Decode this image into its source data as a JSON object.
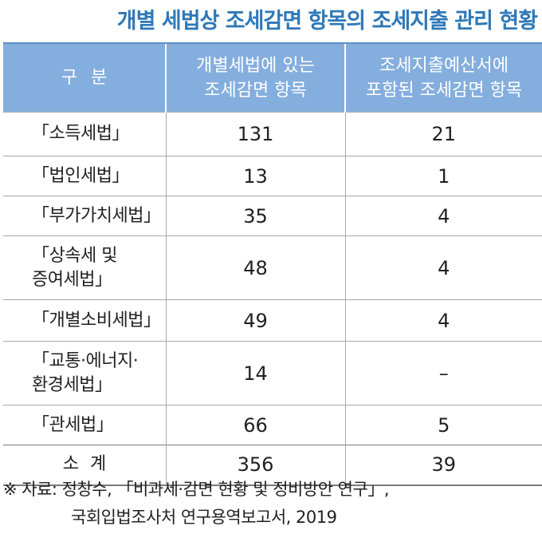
{
  "title": "개별 세법상 조세감면 항목의 조세지출 관리 현황",
  "table": {
    "headers": [
      "구  분",
      "개별세법에 있는\n조세감면 항목",
      "조세지출예산서에\n포함된 조세감면 항목"
    ],
    "rows": [
      {
        "name": "「소득세법」",
        "items": "131",
        "included": "21"
      },
      {
        "name": "「법인세법」",
        "items": "13",
        "included": "1"
      },
      {
        "name": "「부가가치세법」",
        "items": "35",
        "included": "4"
      },
      {
        "name": "「상속세 및\n증여세법」",
        "items": "48",
        "included": "4"
      },
      {
        "name": "「개별소비세법」",
        "items": "49",
        "included": "4"
      },
      {
        "name": "「교통·에너지·\n환경세법」",
        "items": "14",
        "included": "–"
      },
      {
        "name": "「관세법」",
        "items": "66",
        "included": "5"
      }
    ],
    "total": {
      "name": "소 계",
      "items": "356",
      "included": "39"
    }
  },
  "source": {
    "line1": "※ 자료: 정창수, 「비과세·감면 현황 및 정비방안 연구」,",
    "line2": "국회입법조사처 연구용역보고서, 2019"
  }
}
